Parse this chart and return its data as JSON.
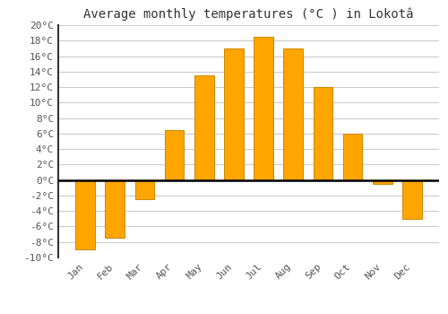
{
  "title": "Average monthly temperatures (°C ) in Lokotâ",
  "months": [
    "Jan",
    "Feb",
    "Mar",
    "Apr",
    "May",
    "Jun",
    "Jul",
    "Aug",
    "Sep",
    "Oct",
    "Nov",
    "Dec"
  ],
  "values": [
    -9,
    -7.5,
    -2.5,
    6.5,
    13.5,
    17,
    18.5,
    17,
    12,
    6,
    -0.5,
    -5
  ],
  "bar_color": "#FFA500",
  "bar_edge_color": "#CC8800",
  "ylim": [
    -10,
    20
  ],
  "yticks": [
    -10,
    -8,
    -6,
    -4,
    -2,
    0,
    2,
    4,
    6,
    8,
    10,
    12,
    14,
    16,
    18,
    20
  ],
  "grid_color": "#cccccc",
  "background_color": "#ffffff",
  "zero_line_color": "#000000",
  "title_fontsize": 10,
  "tick_fontsize": 8
}
